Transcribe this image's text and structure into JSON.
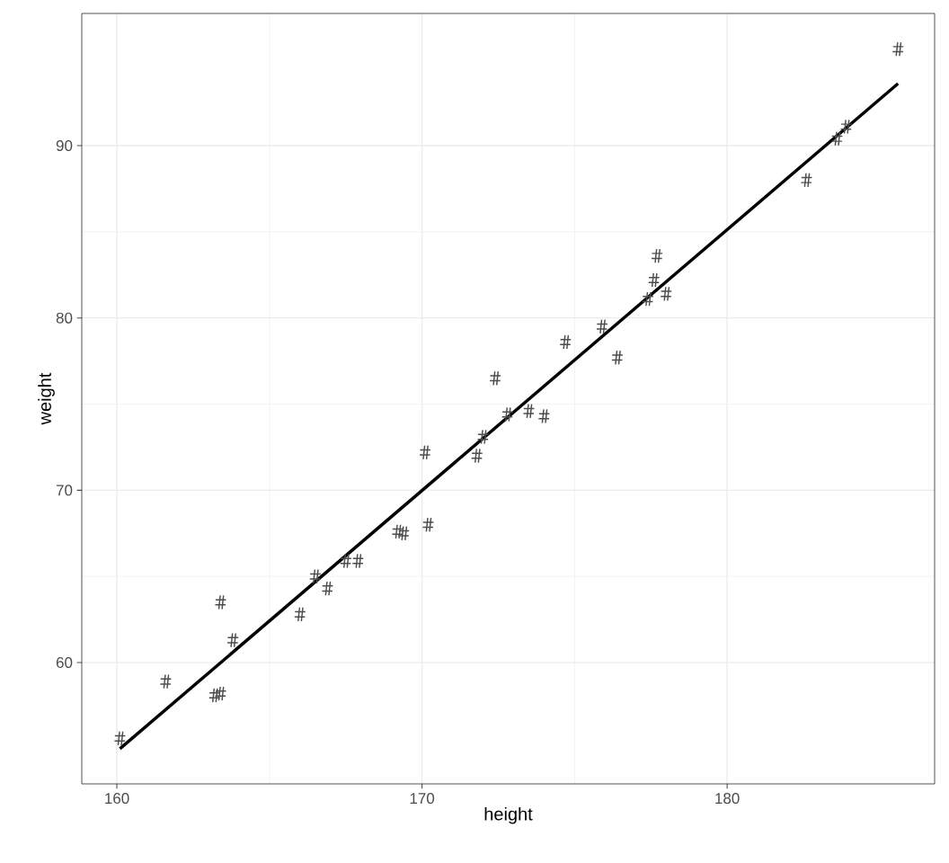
{
  "chart_data": {
    "type": "scatter",
    "xlabel": "height",
    "ylabel": "weight",
    "xlim": [
      158.85,
      186.8
    ],
    "ylim": [
      52.96,
      97.67
    ],
    "xticks": [
      160,
      170,
      180
    ],
    "yticks": [
      60,
      70,
      80,
      90
    ],
    "grid": true,
    "series": [
      {
        "marker": "cross",
        "color": "#4d4d4d",
        "x": [
          160.1,
          161.6,
          163.2,
          163.4,
          163.4,
          163.8,
          166.0,
          166.5,
          166.9,
          167.5,
          167.9,
          169.2,
          169.4,
          170.1,
          170.2,
          171.8,
          172.0,
          172.4,
          172.8,
          173.5,
          174.0,
          174.7,
          175.9,
          176.4,
          177.4,
          177.6,
          177.7,
          178.0,
          182.6,
          183.6,
          183.9,
          185.6
        ],
        "values": [
          55.6,
          58.9,
          58.1,
          58.2,
          63.5,
          61.3,
          62.8,
          65.0,
          64.3,
          65.9,
          65.9,
          67.6,
          67.5,
          72.2,
          68.0,
          72.0,
          73.1,
          76.5,
          74.4,
          74.6,
          74.3,
          78.6,
          79.5,
          77.7,
          81.1,
          82.2,
          83.6,
          81.4,
          88.0,
          90.4,
          91.1,
          95.6
        ]
      },
      {
        "type": "line",
        "color": "#000000",
        "x": [
          160.1,
          185.6
        ],
        "values": [
          55.0,
          93.6
        ]
      }
    ]
  }
}
